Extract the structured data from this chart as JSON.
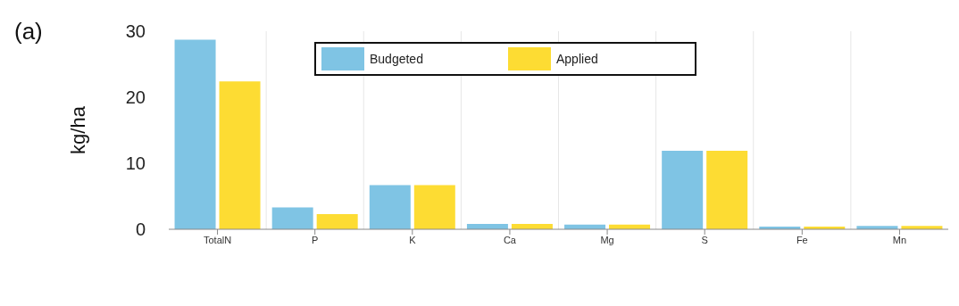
{
  "chart_data": {
    "type": "bar",
    "ylabel": "kg/ha",
    "annotations": [
      "(a)"
    ],
    "categories": [
      "TotalN",
      "P",
      "K",
      "Ca",
      "Mg",
      "S",
      "Fe",
      "Mn"
    ],
    "series": [
      {
        "name": "Budgeted",
        "color": "#7fc4e4",
        "values": [
          28.7,
          3.3,
          6.7,
          0.8,
          0.7,
          11.9,
          0.4,
          0.5
        ]
      },
      {
        "name": "Applied",
        "color": "#fddc33",
        "values": [
          22.4,
          2.3,
          6.7,
          0.8,
          0.7,
          11.9,
          0.4,
          0.5
        ]
      }
    ],
    "ylim": [
      0,
      30
    ],
    "yticks": [
      0,
      10,
      20,
      30
    ],
    "grid": true,
    "legend": "top"
  }
}
